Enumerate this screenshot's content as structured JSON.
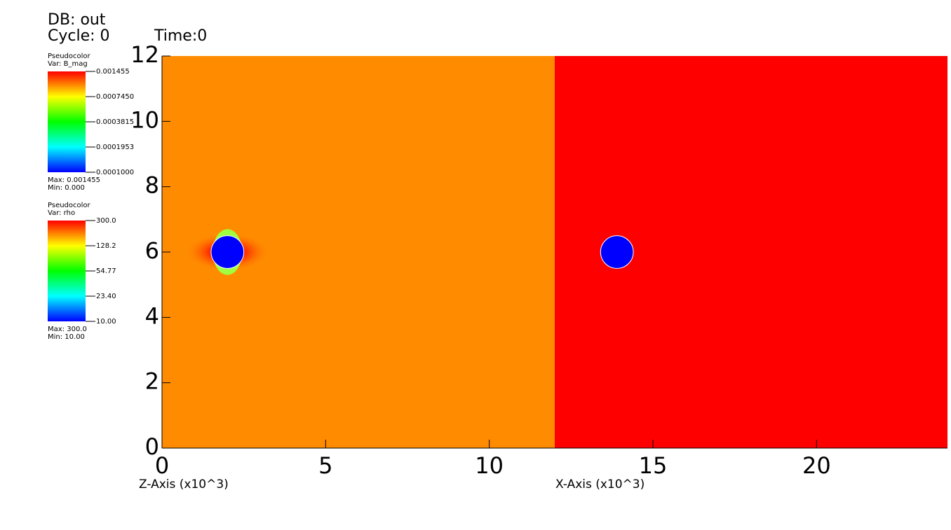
{
  "chart_data": {
    "type": "pseudocolor",
    "header": {
      "db": "DB: out",
      "cycle": "Cycle: 0",
      "time": "Time:0"
    },
    "xlabels": [
      "Z-Axis (x10^3)",
      "X-Axis (x10^3)"
    ],
    "xlim": [
      0,
      24
    ],
    "ylim": [
      0,
      12
    ],
    "xticks": [
      0,
      5,
      10,
      15,
      20
    ],
    "yticks": [
      0,
      2,
      4,
      6,
      8,
      10,
      12
    ],
    "regions": [
      {
        "x": [
          0,
          12
        ],
        "color": "#ff8c00"
      },
      {
        "x": [
          12,
          24
        ],
        "color": "#ff0000"
      }
    ],
    "circles": [
      {
        "x": 2,
        "y": 6,
        "r": 0.5,
        "color": "#0000ff"
      },
      {
        "x": 13.9,
        "y": 6,
        "r": 0.5,
        "color": "#0000ff"
      }
    ],
    "legends": [
      {
        "title": "Pseudocolor",
        "var": "Var: B_mag",
        "ticks": [
          {
            "value": 0.001455,
            "label": "0.001455"
          },
          {
            "value": 0.000745,
            "label": "0.0007450"
          },
          {
            "value": 0.0003815,
            "label": "0.0003815"
          },
          {
            "value": 0.0001953,
            "label": "0.0001953"
          },
          {
            "value": 0.0001,
            "label": "0.0001000"
          }
        ],
        "max": "Max: 0.001455",
        "min": "Min:  0.000"
      },
      {
        "title": "Pseudocolor",
        "var": "Var: rho",
        "ticks": [
          {
            "value": 300,
            "label": "300.0"
          },
          {
            "value": 128.2,
            "label": "128.2"
          },
          {
            "value": 54.77,
            "label": "54.77"
          },
          {
            "value": 23.4,
            "label": "23.40"
          },
          {
            "value": 10,
            "label": "10.00"
          }
        ],
        "max": "Max:  300.0",
        "min": "Min:  10.00"
      }
    ]
  }
}
